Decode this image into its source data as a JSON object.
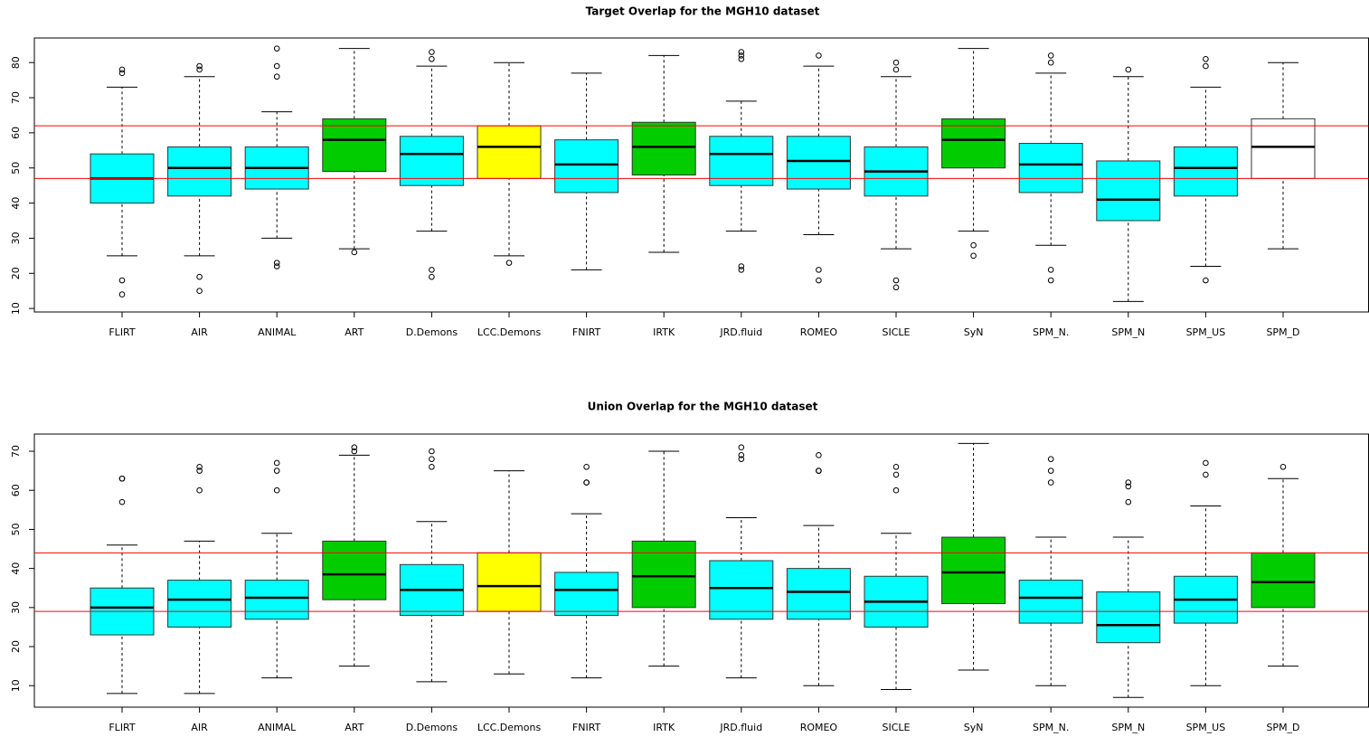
{
  "chart_data": [
    {
      "type": "box",
      "title": "Target Overlap for the MGH10 dataset",
      "categories": [
        "FLIRT",
        "AIR",
        "ANIMAL",
        "ART",
        "D.Demons",
        "LCC.Demons",
        "FNIRT",
        "IRTK",
        "JRD.fluid",
        "ROMEO",
        "SICLE",
        "SyN",
        "SPM_N.",
        "SPM_N",
        "SPM_US",
        "SPM_D"
      ],
      "colors": [
        "#00ffff",
        "#00ffff",
        "#00ffff",
        "#00cc00",
        "#00ffff",
        "#ffff00",
        "#00ffff",
        "#00cc00",
        "#00ffff",
        "#00ffff",
        "#00ffff",
        "#00cc00",
        "#00ffff",
        "#00ffff",
        "#00ffff",
        "#ffffff"
      ],
      "whislo": [
        25,
        25,
        30,
        27,
        32,
        25,
        21,
        26,
        32,
        31,
        27,
        32,
        28,
        12,
        22,
        27
      ],
      "q1": [
        40,
        42,
        44,
        49,
        45,
        47,
        43,
        48,
        45,
        44,
        42,
        50,
        43,
        35,
        42,
        47
      ],
      "median": [
        47,
        50,
        50,
        58,
        54,
        56,
        51,
        56,
        54,
        52,
        49,
        58,
        51,
        41,
        50,
        56
      ],
      "q3": [
        54,
        56,
        56,
        64,
        59,
        62,
        58,
        63,
        59,
        59,
        56,
        64,
        57,
        52,
        56,
        64
      ],
      "whishi": [
        73,
        76,
        66,
        84,
        79,
        80,
        77,
        82,
        69,
        79,
        76,
        84,
        77,
        76,
        73,
        80
      ],
      "outliers": [
        [
          78,
          77,
          18,
          14
        ],
        [
          79,
          78,
          19,
          15
        ],
        [
          84,
          79,
          76,
          23,
          22
        ],
        [
          26
        ],
        [
          83,
          81,
          21,
          19
        ],
        [
          23
        ],
        [],
        [],
        [
          83,
          82,
          81,
          22,
          21
        ],
        [
          82,
          21,
          18
        ],
        [
          80,
          78,
          18,
          16
        ],
        [
          28,
          25
        ],
        [
          82,
          80,
          21,
          18
        ],
        [
          78
        ],
        [
          81,
          79,
          18
        ],
        []
      ],
      "reference_lines": [
        {
          "value": 62,
          "color": "#ff0000"
        },
        {
          "value": 47,
          "color": "#ff0000"
        }
      ],
      "ylim": [
        9,
        87
      ],
      "yticks": [
        10,
        20,
        30,
        40,
        50,
        60,
        70,
        80
      ]
    },
    {
      "type": "box",
      "title": "Union Overlap for the MGH10 dataset",
      "categories": [
        "FLIRT",
        "AIR",
        "ANIMAL",
        "ART",
        "D.Demons",
        "LCC.Demons",
        "FNIRT",
        "IRTK",
        "JRD.fluid",
        "ROMEO",
        "SICLE",
        "SyN",
        "SPM_N.",
        "SPM_N",
        "SPM_US",
        "SPM_D"
      ],
      "colors": [
        "#00ffff",
        "#00ffff",
        "#00ffff",
        "#00cc00",
        "#00ffff",
        "#ffff00",
        "#00ffff",
        "#00cc00",
        "#00ffff",
        "#00ffff",
        "#00ffff",
        "#00cc00",
        "#00ffff",
        "#00ffff",
        "#00ffff",
        "#00cc00"
      ],
      "whislo": [
        8,
        8,
        12,
        15,
        11,
        13,
        12,
        15,
        12,
        10,
        9,
        14,
        10,
        7,
        10,
        15
      ],
      "q1": [
        23,
        25,
        27,
        32,
        28,
        29,
        28,
        30,
        27,
        27,
        25,
        31,
        26,
        21,
        26,
        30
      ],
      "median": [
        30,
        32,
        32.5,
        38.5,
        34.5,
        35.5,
        34.5,
        38,
        35,
        34,
        31.5,
        39,
        32.5,
        25.5,
        32,
        36.5
      ],
      "q3": [
        35,
        37,
        37,
        47,
        41,
        44,
        39,
        47,
        42,
        40,
        38,
        48,
        37,
        34,
        38,
        44
      ],
      "whishi": [
        46,
        47,
        49,
        69,
        52,
        65,
        54,
        70,
        53,
        51,
        49,
        72,
        48,
        48,
        56,
        63
      ],
      "outliers": [
        [
          63,
          63,
          57
        ],
        [
          66,
          65,
          60
        ],
        [
          67,
          65,
          60
        ],
        [
          71,
          70
        ],
        [
          70,
          68,
          66
        ],
        [],
        [
          66,
          62,
          62
        ],
        [],
        [
          71,
          69,
          68
        ],
        [
          69,
          65,
          65
        ],
        [
          66,
          64,
          60
        ],
        [],
        [
          68,
          65,
          62
        ],
        [
          62,
          61,
          57
        ],
        [
          67,
          64
        ],
        [
          66
        ]
      ],
      "reference_lines": [
        {
          "value": 44,
          "color": "#ff0000"
        },
        {
          "value": 29,
          "color": "#ff0000"
        }
      ],
      "ylim": [
        4.5,
        74.4
      ],
      "yticks": [
        10,
        20,
        30,
        40,
        50,
        60,
        70
      ]
    }
  ]
}
